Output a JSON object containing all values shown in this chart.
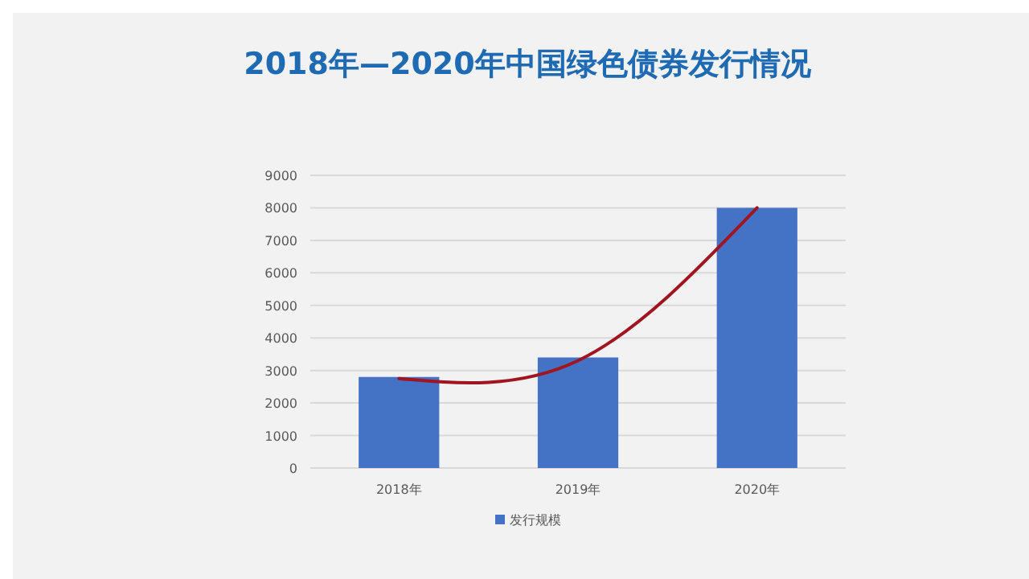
{
  "chart_data": {
    "type": "bar",
    "title": "2018年—2020年中国绿色债券发行情况",
    "categories": [
      "2018年",
      "2019年",
      "2020年"
    ],
    "series": [
      {
        "name": "发行规模",
        "color": "#4472c4",
        "values": [
          2800,
          3400,
          8000
        ]
      },
      {
        "type": "line",
        "color": "#a01520",
        "values": [
          2750,
          3300,
          8000
        ]
      }
    ],
    "ylim": [
      0,
      9000
    ],
    "yticks": [
      0,
      1000,
      2000,
      3000,
      4000,
      5000,
      6000,
      7000,
      8000,
      9000
    ],
    "grid": "y",
    "legend": "bottom",
    "marker": "none",
    "line_style": "solid"
  }
}
